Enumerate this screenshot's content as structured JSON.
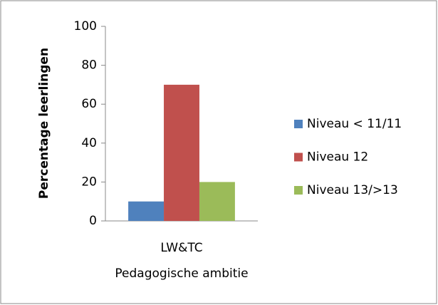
{
  "chart_data": {
    "type": "bar",
    "categories": [
      "LW&TC"
    ],
    "series": [
      {
        "name": "Niveau < 11/11",
        "color": "#4f81bd",
        "values": [
          10
        ]
      },
      {
        "name": "Niveau 12",
        "color": "#c0504d",
        "values": [
          70
        ]
      },
      {
        "name": "Niveau 13/>13",
        "color": "#9bbb59",
        "values": [
          20
        ]
      }
    ],
    "xlabel": "Pedagogische ambitie",
    "ylabel": "Percentage leerlingen",
    "ylim": [
      0,
      100
    ],
    "yticks": [
      0,
      20,
      40,
      60,
      80,
      100
    ],
    "grid": false,
    "legend": "right"
  }
}
